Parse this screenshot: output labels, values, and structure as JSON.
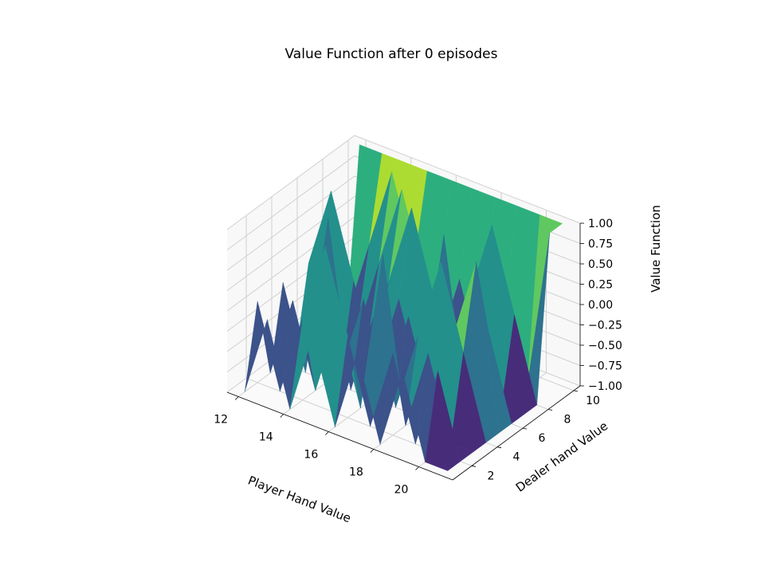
{
  "chart_data": {
    "type": "surface3d",
    "title": "Value Function after 0 episodes",
    "xlabel": "Player Hand Value",
    "ylabel": "Dealer hand Value",
    "zlabel": "Value Function",
    "x": [
      12,
      13,
      14,
      15,
      16,
      17,
      18,
      19,
      20,
      21
    ],
    "y": [
      1,
      2,
      3,
      4,
      5,
      6,
      7,
      8,
      9,
      10
    ],
    "xticks": [
      "12",
      "14",
      "16",
      "18",
      "20"
    ],
    "xtick_values": [
      12,
      14,
      16,
      18,
      20
    ],
    "yticks": [
      "2",
      "4",
      "6",
      "8",
      "10"
    ],
    "ytick_values": [
      2,
      4,
      6,
      8,
      10
    ],
    "zticks": [
      "−1.00",
      "−0.75",
      "−0.50",
      "−0.25",
      "0.00",
      "0.25",
      "0.50",
      "0.75",
      "1.00"
    ],
    "ztick_values": [
      -1.0,
      -0.75,
      -0.5,
      -0.25,
      0.0,
      0.25,
      0.5,
      0.75,
      1.0
    ],
    "xlim": [
      11.5,
      21.5
    ],
    "ylim": [
      0.5,
      10.5
    ],
    "zlim": [
      -1.0,
      1.0
    ],
    "colormap": "viridis",
    "grid": true,
    "z": [
      [
        -1,
        0,
        -1,
        0,
        -1,
        0,
        -1,
        0,
        -1,
        -1
      ],
      [
        0,
        -1,
        0,
        1,
        0,
        -1,
        0,
        -1,
        0,
        -1
      ],
      [
        -1,
        0,
        -1,
        0,
        -1,
        1,
        -1,
        0,
        -1,
        -1
      ],
      [
        0,
        -1,
        1,
        -1,
        0,
        -1,
        0,
        1,
        0,
        -1
      ],
      [
        -1,
        0,
        -1,
        0,
        -1,
        0,
        -1,
        0,
        1,
        -1
      ],
      [
        0,
        1,
        0,
        -1,
        0,
        -1,
        1,
        -1,
        0,
        -1
      ],
      [
        -1,
        0,
        -1,
        0,
        1,
        0,
        -1,
        0,
        -1,
        -1
      ],
      [
        0,
        -1,
        0,
        1,
        0,
        -1,
        0,
        1,
        0,
        -1
      ],
      [
        -1,
        0,
        1,
        0,
        -1,
        0,
        -1,
        0,
        -1,
        1
      ],
      [
        1,
        1,
        1,
        1,
        1,
        1,
        1,
        1,
        1,
        1
      ]
    ]
  }
}
